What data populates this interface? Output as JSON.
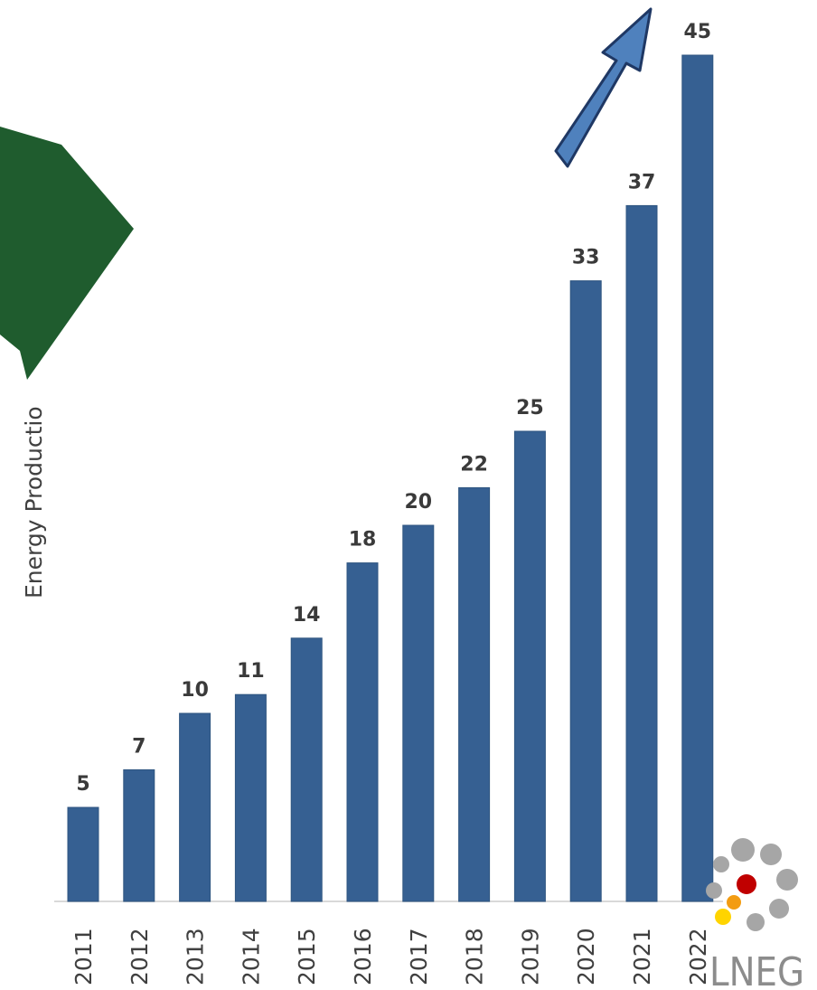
{
  "chart_data": {
    "type": "bar",
    "categories": [
      "2011",
      "2012",
      "2013",
      "2014",
      "2015",
      "2016",
      "2017",
      "2018",
      "2019",
      "2020",
      "2021",
      "2022"
    ],
    "values": [
      5,
      7,
      10,
      11,
      14,
      18,
      20,
      22,
      25,
      33,
      37,
      45
    ],
    "ylabel": "Energy Productio",
    "bar_color": "#366092",
    "show_data_labels": true,
    "grid": false
  },
  "colors": {
    "big_arrow": "#1f5c2e",
    "small_arrow": "#4f81bd",
    "small_arrow_outline": "#1f3864"
  },
  "logo": {
    "text": "LNEG",
    "dot_gray": "#a6a6a6",
    "dot_red": "#c00000",
    "dot_orange": "#f39c12",
    "dot_yellow": "#ffd400"
  }
}
